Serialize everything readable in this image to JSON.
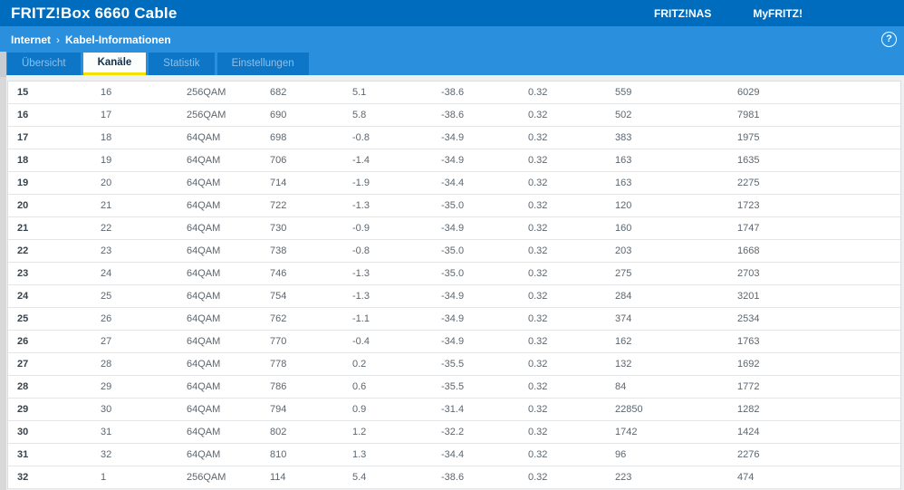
{
  "header": {
    "title": "FRITZ!Box 6660 Cable",
    "links": [
      {
        "label": "FRITZ!NAS"
      },
      {
        "label": "MyFRITZ!"
      }
    ]
  },
  "breadcrumb": {
    "section": "Internet",
    "separator": "›",
    "page": "Kabel-Informationen"
  },
  "help": {
    "glyph": "?"
  },
  "tabs": [
    {
      "label": "Übersicht",
      "active": false
    },
    {
      "label": "Kanäle",
      "active": true
    },
    {
      "label": "Statistik",
      "active": false
    },
    {
      "label": "Einstellungen",
      "active": false
    }
  ],
  "colors": {
    "topbar_blue": "#006cbe",
    "bar_blue": "#2a8fdd",
    "tab_inactive_blue": "#0e76c6",
    "active_tab_underline_yellow": "#f5e003",
    "row_border": "#e4e5e6",
    "cell_text": "#5c6670"
  },
  "table": {
    "rows": [
      [
        "15",
        "16",
        "256QAM",
        "682",
        "5.1",
        "-38.6",
        "0.32",
        "559",
        "6029"
      ],
      [
        "16",
        "17",
        "256QAM",
        "690",
        "5.8",
        "-38.6",
        "0.32",
        "502",
        "7981"
      ],
      [
        "17",
        "18",
        "64QAM",
        "698",
        "-0.8",
        "-34.9",
        "0.32",
        "383",
        "1975"
      ],
      [
        "18",
        "19",
        "64QAM",
        "706",
        "-1.4",
        "-34.9",
        "0.32",
        "163",
        "1635"
      ],
      [
        "19",
        "20",
        "64QAM",
        "714",
        "-1.9",
        "-34.4",
        "0.32",
        "163",
        "2275"
      ],
      [
        "20",
        "21",
        "64QAM",
        "722",
        "-1.3",
        "-35.0",
        "0.32",
        "120",
        "1723"
      ],
      [
        "21",
        "22",
        "64QAM",
        "730",
        "-0.9",
        "-34.9",
        "0.32",
        "160",
        "1747"
      ],
      [
        "22",
        "23",
        "64QAM",
        "738",
        "-0.8",
        "-35.0",
        "0.32",
        "203",
        "1668"
      ],
      [
        "23",
        "24",
        "64QAM",
        "746",
        "-1.3",
        "-35.0",
        "0.32",
        "275",
        "2703"
      ],
      [
        "24",
        "25",
        "64QAM",
        "754",
        "-1.3",
        "-34.9",
        "0.32",
        "284",
        "3201"
      ],
      [
        "25",
        "26",
        "64QAM",
        "762",
        "-1.1",
        "-34.9",
        "0.32",
        "374",
        "2534"
      ],
      [
        "26",
        "27",
        "64QAM",
        "770",
        "-0.4",
        "-34.9",
        "0.32",
        "162",
        "1763"
      ],
      [
        "27",
        "28",
        "64QAM",
        "778",
        "0.2",
        "-35.5",
        "0.32",
        "132",
        "1692"
      ],
      [
        "28",
        "29",
        "64QAM",
        "786",
        "0.6",
        "-35.5",
        "0.32",
        "84",
        "1772"
      ],
      [
        "29",
        "30",
        "64QAM",
        "794",
        "0.9",
        "-31.4",
        "0.32",
        "22850",
        "1282"
      ],
      [
        "30",
        "31",
        "64QAM",
        "802",
        "1.2",
        "-32.2",
        "0.32",
        "1742",
        "1424"
      ],
      [
        "31",
        "32",
        "64QAM",
        "810",
        "1.3",
        "-34.4",
        "0.32",
        "96",
        "2276"
      ],
      [
        "32",
        "1",
        "256QAM",
        "114",
        "5.4",
        "-38.6",
        "0.32",
        "223",
        "474"
      ]
    ]
  }
}
